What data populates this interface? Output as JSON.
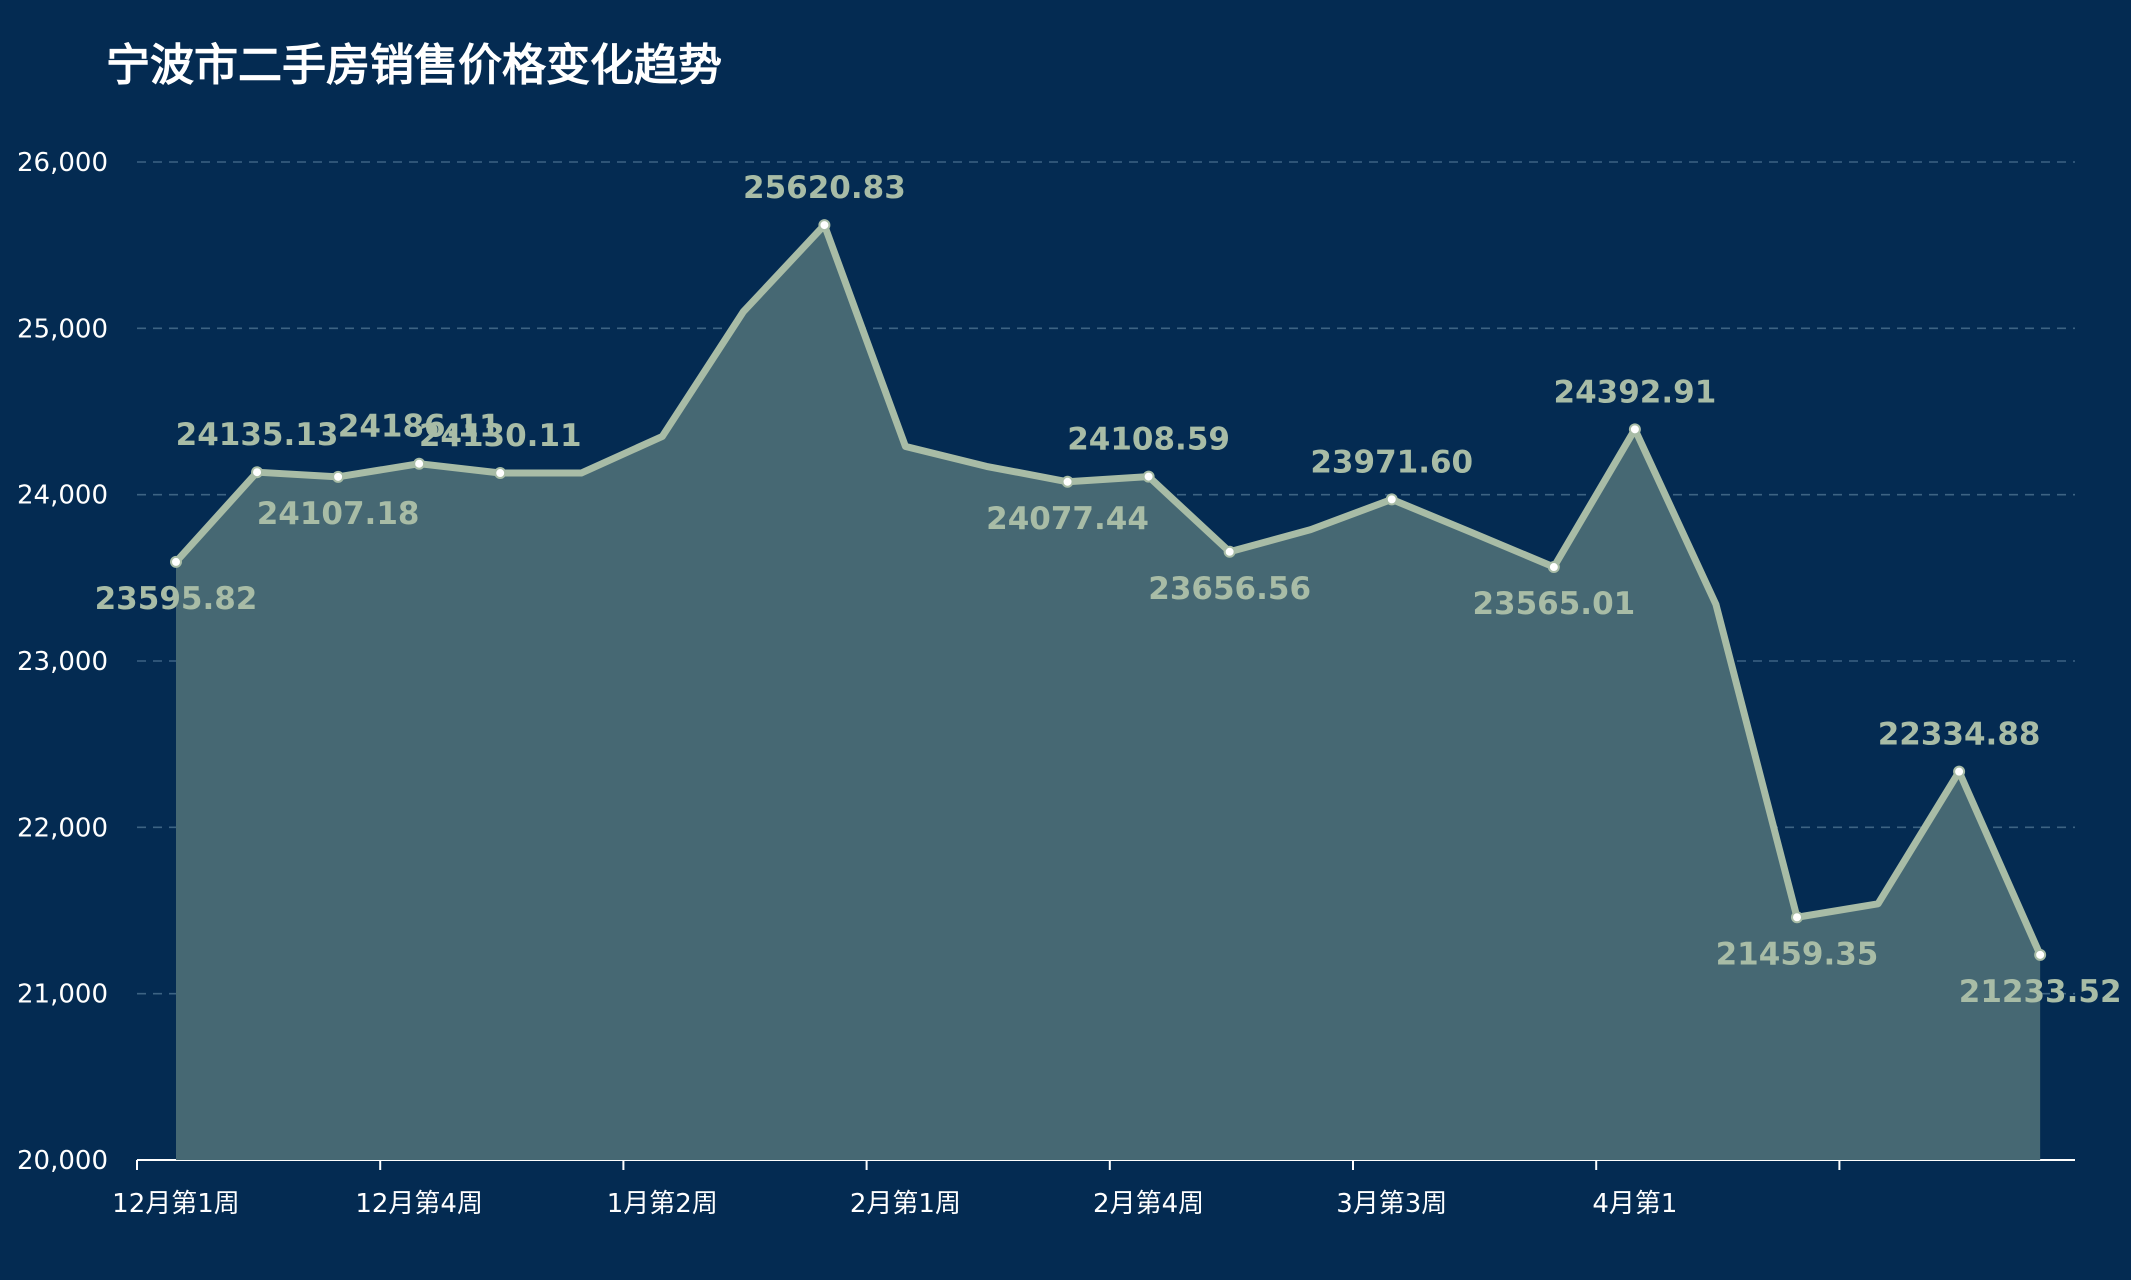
{
  "chart_data": {
    "type": "area",
    "title": "宁波市二手房销售价格变化趋势",
    "xlabel": "",
    "ylabel": "",
    "ylim": [
      20000,
      26000
    ],
    "yticks": [
      20000,
      21000,
      22000,
      23000,
      24000,
      25000,
      26000
    ],
    "ytick_labels": [
      "20,000",
      "21,000",
      "22,000",
      "23,000",
      "24,000",
      "25,000",
      "26,000"
    ],
    "xtick_labels": [
      "12月第1周",
      "12月第4周",
      "1月第2周",
      "2月第1周",
      "2月第4周",
      "3月第3周",
      "4月第1"
    ],
    "grid": true,
    "values": [
      23595.82,
      24135.13,
      24107.18,
      24186.11,
      24130.11,
      24130,
      24350,
      25100,
      25620.83,
      24290,
      24170,
      24077.44,
      24108.59,
      23656.56,
      23790,
      23971.6,
      23770,
      23565.01,
      24392.91,
      23340,
      21459.35,
      21540,
      22334.88,
      21233.52
    ],
    "data_labels": [
      "23595.82",
      "24135.13",
      "24107.18",
      "24186.11",
      "24130.11",
      "",
      "",
      "",
      "25620.83",
      "",
      "",
      "24077.44",
      "24108.59",
      "23656.56",
      "",
      "23971.60",
      "",
      "23565.01",
      "24392.91",
      "",
      "21459.35",
      "",
      "22334.88",
      "21233.52"
    ],
    "colors": {
      "background": "#042b52",
      "line": "#a8bca6",
      "fill": "#466873",
      "label": "#a8bca6",
      "axis_text": "#ffffff",
      "grid": "#3d6383"
    }
  }
}
